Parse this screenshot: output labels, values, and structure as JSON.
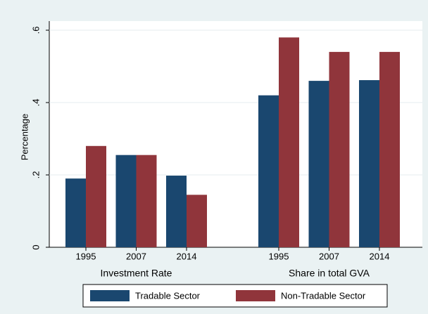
{
  "chart_data": {
    "type": "bar",
    "y_label": "Percentage",
    "categories": [
      "1995",
      "2007",
      "2014",
      "1995",
      "2007",
      "2014"
    ],
    "groups": [
      "Investment Rate",
      "Share in total GVA"
    ],
    "series": [
      {
        "name": "Tradable Sector",
        "color": "#1a476f",
        "values": [
          0.19,
          0.255,
          0.198,
          0.42,
          0.46,
          0.462
        ]
      },
      {
        "name": "Non-Tradable Sector",
        "color": "#90353b",
        "values": [
          0.28,
          0.255,
          0.145,
          0.58,
          0.54,
          0.54
        ]
      }
    ],
    "ylim": [
      0,
      0.6
    ],
    "yticks": [
      0,
      {
        "value": 0.2,
        "label": ".2"
      },
      {
        "value": 0.4,
        "label": ".4"
      },
      {
        "value": 0.6,
        "label": ".6"
      }
    ],
    "grid": true
  }
}
